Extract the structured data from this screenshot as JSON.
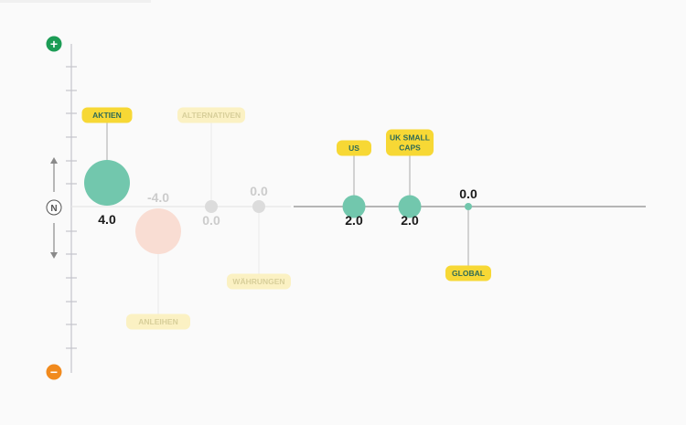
{
  "colors": {
    "accent_green": "#72c7ad",
    "bubble_neg": "#f9ddd3",
    "neutral_dot": "#dcdcdc",
    "tag_yellow": "#f7d835",
    "tag_yellow_faded": "#fbf1c3",
    "plus_button": "#1c9c55",
    "minus_button": "#f18a1d",
    "axis": "#c4c4cc"
  },
  "scale": {
    "plus_icon": "+",
    "minus_icon": "−",
    "neutral_label": "N",
    "up_arrow_icon": "arrow-up-icon",
    "down_arrow_icon": "arrow-down-icon"
  },
  "chart_data": {
    "type": "scatter",
    "title": "",
    "xlabel": "",
    "ylabel": "",
    "series": [
      {
        "label": "AKTIEN",
        "value": 4.0,
        "value_text": "4.0",
        "faded": false,
        "tag_position": "above",
        "value_position": "below",
        "color": "#72c7ad"
      },
      {
        "label": "ANLEIHEN",
        "value": -4.0,
        "value_text": "-4.0",
        "faded": true,
        "tag_position": "below",
        "value_position": "above",
        "color": "#f9ddd3"
      },
      {
        "label": "ALTERNATIVEN",
        "value": 0.0,
        "value_text": "0.0",
        "faded": true,
        "tag_position": "above",
        "value_position": "below",
        "color": "#dcdcdc"
      },
      {
        "label": "WÄHRUNGEN",
        "value": 0.0,
        "value_text": "0.0",
        "faded": true,
        "tag_position": "below",
        "value_position": "above",
        "color": "#dcdcdc"
      },
      {
        "label": "US",
        "value": 2.0,
        "value_text": "2.0",
        "faded": false,
        "tag_position": "above",
        "value_position": "below",
        "color": "#72c7ad"
      },
      {
        "label": "UK SMALL CAPS",
        "label_lines": [
          "UK SMALL",
          "CAPS"
        ],
        "value": 2.0,
        "value_text": "2.0",
        "faded": false,
        "tag_position": "above",
        "value_position": "below",
        "color": "#72c7ad"
      },
      {
        "label": "GLOBAL",
        "value": 0.0,
        "value_text": "0.0",
        "faded": false,
        "tag_position": "below",
        "value_position": "above",
        "color": "#72c7ad"
      }
    ]
  }
}
